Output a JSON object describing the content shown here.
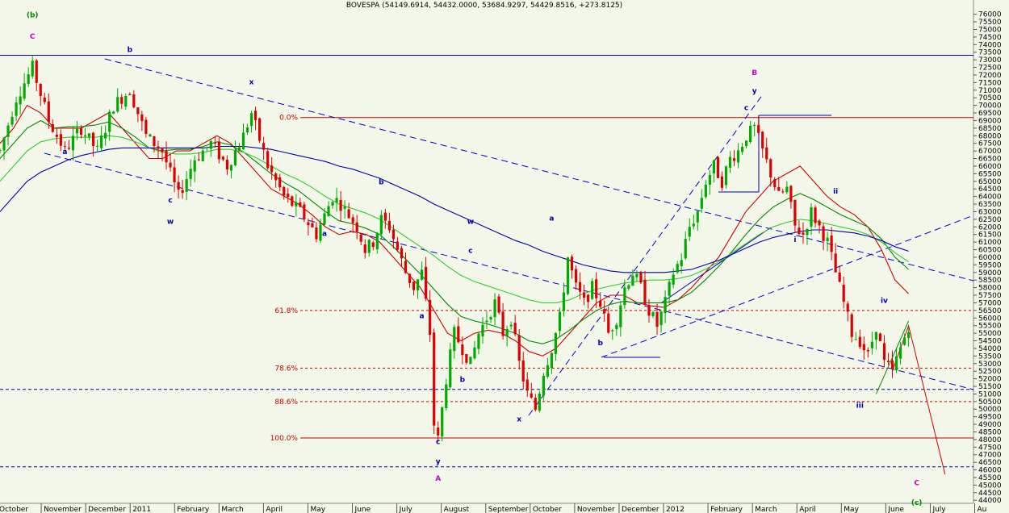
{
  "chart_data": {
    "type": "candlestick",
    "title": "BOVESPA (54149.6914, 54432.0000, 53684.9297, 54429.8516, +273.8125)",
    "x_tick_labels": [
      "October",
      "November",
      "December",
      "2011",
      "February",
      "March",
      "April",
      "May",
      "June",
      "July",
      "August",
      "September",
      "October",
      "November",
      "December",
      "2012",
      "February",
      "March",
      "April",
      "May",
      "June",
      "July",
      "Au"
    ],
    "y_tick_labels": [
      "76000",
      "75500",
      "75000",
      "74500",
      "74000",
      "73500",
      "73000",
      "72500",
      "72000",
      "71500",
      "71000",
      "70500",
      "70000",
      "69500",
      "69000",
      "68500",
      "68000",
      "67500",
      "67000",
      "66500",
      "66000",
      "65500",
      "65000",
      "64500",
      "64000",
      "63500",
      "63000",
      "62500",
      "62000",
      "61500",
      "61000",
      "60500",
      "60000",
      "59500",
      "59000",
      "58500",
      "58000",
      "57500",
      "57000",
      "56500",
      "56000",
      "55500",
      "55000",
      "54500",
      "54000",
      "53500",
      "53000",
      "52500",
      "52000",
      "51500",
      "51000",
      "50500",
      "50000",
      "49500",
      "49000",
      "48500",
      "48000",
      "47500",
      "47000",
      "46500",
      "46000",
      "45500",
      "45000",
      "44500",
      "44000"
    ],
    "ylim": [
      43800,
      76300
    ],
    "price_path": [
      [
        0,
        67000
      ],
      [
        4,
        70500
      ],
      [
        8,
        72500
      ],
      [
        12,
        69000
      ],
      [
        16,
        67000
      ],
      [
        20,
        68500
      ],
      [
        24,
        67000
      ],
      [
        28,
        70000
      ],
      [
        32,
        71000
      ],
      [
        36,
        68000
      ],
      [
        40,
        67000
      ],
      [
        44,
        64000
      ],
      [
        48,
        66500
      ],
      [
        52,
        67500
      ],
      [
        56,
        66000
      ],
      [
        60,
        68000
      ],
      [
        62,
        69500
      ],
      [
        66,
        66000
      ],
      [
        70,
        64000
      ],
      [
        74,
        63000
      ],
      [
        78,
        61500
      ],
      [
        82,
        64000
      ],
      [
        84,
        63500
      ],
      [
        88,
        62000
      ],
      [
        90,
        60500
      ],
      [
        92,
        61000
      ],
      [
        94,
        62500
      ],
      [
        96,
        62000
      ],
      [
        100,
        59000
      ],
      [
        102,
        58000
      ],
      [
        104,
        59000
      ],
      [
        106,
        55000
      ],
      [
        107,
        49000
      ],
      [
        108,
        48000
      ],
      [
        110,
        52000
      ],
      [
        112,
        55000
      ],
      [
        114,
        54000
      ],
      [
        116,
        53000
      ],
      [
        118,
        55000
      ],
      [
        120,
        56000
      ],
      [
        122,
        57000
      ],
      [
        124,
        55000
      ],
      [
        126,
        56000
      ],
      [
        128,
        53000
      ],
      [
        130,
        51000
      ],
      [
        132,
        50000
      ],
      [
        134,
        52500
      ],
      [
        136,
        54000
      ],
      [
        138,
        56000
      ],
      [
        140,
        60000
      ],
      [
        142,
        58000
      ],
      [
        144,
        57000
      ],
      [
        146,
        58000
      ],
      [
        148,
        57000
      ],
      [
        150,
        55000
      ],
      [
        152,
        56000
      ],
      [
        154,
        58000
      ],
      [
        156,
        59000
      ],
      [
        158,
        58000
      ],
      [
        160,
        56500
      ],
      [
        162,
        55500
      ],
      [
        164,
        57000
      ],
      [
        166,
        59000
      ],
      [
        168,
        60000
      ],
      [
        170,
        62000
      ],
      [
        172,
        63000
      ],
      [
        174,
        65000
      ],
      [
        176,
        66000
      ],
      [
        178,
        65000
      ],
      [
        180,
        66500
      ],
      [
        182,
        67000
      ],
      [
        184,
        68000
      ],
      [
        186,
        68500
      ],
      [
        188,
        67000
      ],
      [
        190,
        65500
      ],
      [
        192,
        64000
      ],
      [
        194,
        64500
      ],
      [
        196,
        62000
      ],
      [
        198,
        61500
      ],
      [
        200,
        63000
      ],
      [
        202,
        62000
      ],
      [
        204,
        61000
      ],
      [
        206,
        59000
      ],
      [
        208,
        57000
      ],
      [
        210,
        55000
      ],
      [
        212,
        54500
      ],
      [
        214,
        53500
      ],
      [
        216,
        55500
      ],
      [
        218,
        53000
      ],
      [
        220,
        52500
      ],
      [
        222,
        54000
      ],
      [
        224,
        55500
      ]
    ],
    "series": [
      {
        "color": "#d00000",
        "y": [
          67500,
          68500,
          70000,
          69500,
          68500,
          68500,
          68500,
          69000,
          69500,
          68500,
          67500,
          66500,
          66500,
          67000,
          67000,
          67500,
          68000,
          67500,
          66500,
          65500,
          64500,
          64000,
          63500,
          62800,
          62000,
          61500,
          61700,
          61500,
          61000,
          60000,
          59000,
          58000,
          56500,
          55000,
          54500,
          55000,
          55200,
          55000,
          54500,
          53800,
          53500,
          54000,
          55000,
          56000,
          57000,
          57500,
          57500,
          57000,
          56800,
          56700,
          57200,
          58000,
          59000,
          60000,
          61500,
          63000,
          64000,
          65000,
          65500,
          66000,
          65000,
          64000,
          63300,
          62800,
          62000,
          60500,
          58500,
          57600
        ]
      },
      {
        "color": "#008800",
        "y": [
          66500,
          67500,
          68500,
          69000,
          68500,
          68600,
          68600,
          68700,
          68900,
          68500,
          67900,
          67200,
          67000,
          67100,
          67100,
          67300,
          67600,
          67400,
          66900,
          66200,
          65500,
          64900,
          64400,
          63700,
          63000,
          62400,
          62200,
          61900,
          61500,
          60700,
          59800,
          58900,
          57900,
          56900,
          56100,
          55800,
          55600,
          55300,
          55000,
          54500,
          54300,
          54600,
          55200,
          55900,
          56500,
          56900,
          57100,
          57000,
          57000,
          57000,
          57200,
          57700,
          58500,
          59400,
          60400,
          61500,
          62500,
          63300,
          63800,
          64200,
          63800,
          63300,
          62800,
          62400,
          62000,
          61200,
          60000,
          59200
        ]
      },
      {
        "color": "#33cc33",
        "y": [
          65000,
          66000,
          67000,
          67600,
          67800,
          67900,
          67900,
          67900,
          68000,
          67900,
          67600,
          67200,
          66900,
          66800,
          66800,
          66900,
          67100,
          67100,
          66900,
          66500,
          66000,
          65500,
          65100,
          64600,
          64000,
          63500,
          63200,
          62900,
          62500,
          61900,
          61300,
          60700,
          60100,
          59400,
          58800,
          58400,
          58100,
          57800,
          57500,
          57200,
          57000,
          57000,
          57200,
          57600,
          57900,
          58100,
          58300,
          58400,
          58500,
          58500,
          58600,
          58800,
          59200,
          59700,
          60300,
          60900,
          61500,
          62000,
          62300,
          62500,
          62400,
          62200,
          62000,
          61800,
          61500,
          61000,
          60300,
          59700
        ]
      },
      {
        "color": "#0000aa",
        "y": [
          63000,
          64000,
          65000,
          65600,
          66000,
          66400,
          66700,
          66900,
          67100,
          67200,
          67200,
          67200,
          67200,
          67200,
          67200,
          67200,
          67300,
          67300,
          67300,
          67200,
          67100,
          66900,
          66700,
          66500,
          66300,
          66000,
          65800,
          65500,
          65200,
          64800,
          64400,
          64000,
          63500,
          63100,
          62700,
          62300,
          61900,
          61500,
          61100,
          60800,
          60400,
          60100,
          59800,
          59500,
          59300,
          59100,
          59000,
          59000,
          59000,
          59000,
          59100,
          59200,
          59500,
          59800,
          60200,
          60600,
          61000,
          61300,
          61500,
          61700,
          61800,
          61800,
          61700,
          61600,
          61400,
          61100,
          60700,
          60400
        ]
      }
    ],
    "fib_levels": [
      {
        "label": "0.0%",
        "value": 69200
      },
      {
        "label": "61.8%",
        "value": 56500
      },
      {
        "label": "78.6%",
        "value": 52700
      },
      {
        "label": "88.6%",
        "value": 50500
      },
      {
        "label": "100.0%",
        "value": 48100
      }
    ],
    "horizontal_lines": [
      {
        "value": 73300,
        "color": "#0000aa",
        "dashed": false
      },
      {
        "value": 51300,
        "color": "#0000aa",
        "dashed": true
      },
      {
        "value": 46200,
        "color": "#0000aa",
        "dashed": true
      }
    ],
    "wave_labels": [
      {
        "t": "(b)",
        "day": 4,
        "value": 75800,
        "color": "#008800"
      },
      {
        "t": "C",
        "day": 4,
        "value": 74400,
        "color": "#cc00cc"
      },
      {
        "t": "a",
        "day": 8,
        "value": 66800,
        "color": "#0000aa"
      },
      {
        "t": "b",
        "day": 16,
        "value": 73500,
        "color": "#0000aa"
      },
      {
        "t": "c",
        "day": 21,
        "value": 63600,
        "color": "#0000aa"
      },
      {
        "t": "w",
        "day": 21,
        "value": 62200,
        "color": "#0000aa"
      },
      {
        "t": "x",
        "day": 31,
        "value": 71400,
        "color": "#0000aa"
      },
      {
        "t": "a",
        "day": 40,
        "value": 61400,
        "color": "#0000aa"
      },
      {
        "t": "b",
        "day": 47,
        "value": 64800,
        "color": "#0000aa"
      },
      {
        "t": "a",
        "day": 52,
        "value": 56000,
        "color": "#0000aa"
      },
      {
        "t": "b",
        "day": 57,
        "value": 51800,
        "color": "#0000aa"
      },
      {
        "t": "c",
        "day": 54,
        "value": 47700,
        "color": "#0000aa"
      },
      {
        "t": "y",
        "day": 54,
        "value": 46400,
        "color": "#0000aa"
      },
      {
        "t": "A",
        "day": 54,
        "value": 45300,
        "color": "#cc00cc"
      },
      {
        "t": "w",
        "day": 58,
        "value": 62200,
        "color": "#0000aa"
      },
      {
        "t": "c",
        "day": 58,
        "value": 60300,
        "color": "#0000aa"
      },
      {
        "t": "x",
        "day": 64,
        "value": 49200,
        "color": "#0000aa"
      },
      {
        "t": "a",
        "day": 68,
        "value": 62400,
        "color": "#0000aa"
      },
      {
        "t": "b",
        "day": 74,
        "value": 54200,
        "color": "#0000aa"
      },
      {
        "t": "B",
        "day": 93,
        "value": 72000,
        "color": "#cc00cc"
      },
      {
        "t": "y",
        "day": 93,
        "value": 70800,
        "color": "#0000aa"
      },
      {
        "t": "c",
        "day": 92,
        "value": 69700,
        "color": "#0000aa"
      },
      {
        "t": "i",
        "day": 98,
        "value": 61000,
        "color": "#0000aa"
      },
      {
        "t": "ii",
        "day": 103,
        "value": 64200,
        "color": "#0000aa"
      },
      {
        "t": "iii",
        "day": 106,
        "value": 50100,
        "color": "#0000aa"
      },
      {
        "t": "iv",
        "day": 109,
        "value": 57000,
        "color": "#0000aa"
      },
      {
        "t": "C",
        "day": 113,
        "value": 45000,
        "color": "#cc00cc"
      },
      {
        "t": "(c)",
        "day": 113,
        "value": 43700,
        "color": "#008800"
      }
    ]
  }
}
